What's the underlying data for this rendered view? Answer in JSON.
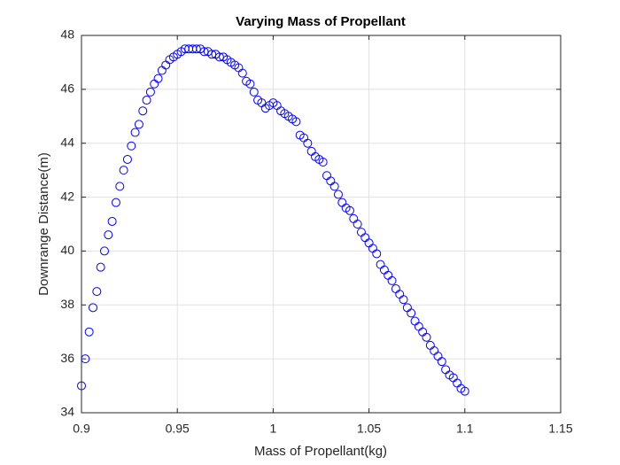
{
  "chart_data": {
    "type": "scatter",
    "title": "Varying Mass of Propellant",
    "xlabel": "Mass of Propellant(kg)",
    "ylabel": "Downrange Distance(m)",
    "color": "#0000ff",
    "grid": true,
    "xlim": [
      0.9,
      1.15
    ],
    "xticks": [
      0.9,
      0.95,
      1,
      1.05,
      1.1,
      1.15
    ],
    "ylim": [
      34,
      48
    ],
    "yticks": [
      34,
      36,
      38,
      40,
      42,
      44,
      46,
      48
    ],
    "x": [
      0.9,
      0.902,
      0.904,
      0.906,
      0.908,
      0.91,
      0.912,
      0.914,
      0.916,
      0.918,
      0.92,
      0.922,
      0.924,
      0.926,
      0.928,
      0.93,
      0.932,
      0.934,
      0.936,
      0.938,
      0.94,
      0.942,
      0.944,
      0.946,
      0.948,
      0.95,
      0.952,
      0.954,
      0.956,
      0.958,
      0.96,
      0.962,
      0.964,
      0.966,
      0.968,
      0.97,
      0.972,
      0.974,
      0.976,
      0.978,
      0.98,
      0.982,
      0.984,
      0.986,
      0.988,
      0.99,
      0.992,
      0.994,
      0.996,
      0.998,
      1.0,
      1.002,
      1.004,
      1.006,
      1.008,
      1.01,
      1.012,
      1.014,
      1.016,
      1.018,
      1.02,
      1.022,
      1.024,
      1.026,
      1.028,
      1.03,
      1.032,
      1.034,
      1.036,
      1.038,
      1.04,
      1.042,
      1.044,
      1.046,
      1.048,
      1.05,
      1.052,
      1.054,
      1.056,
      1.058,
      1.06,
      1.062,
      1.064,
      1.066,
      1.068,
      1.07,
      1.072,
      1.074,
      1.076,
      1.078,
      1.08,
      1.082,
      1.084,
      1.086,
      1.088,
      1.09,
      1.092,
      1.094,
      1.096,
      1.098,
      1.1
    ],
    "values": [
      35.0,
      36.0,
      37.0,
      37.9,
      38.5,
      39.4,
      40.0,
      40.6,
      41.1,
      41.8,
      42.4,
      43.0,
      43.4,
      43.9,
      44.4,
      44.7,
      45.2,
      45.6,
      45.9,
      46.2,
      46.4,
      46.7,
      46.9,
      47.1,
      47.2,
      47.3,
      47.4,
      47.5,
      47.5,
      47.5,
      47.5,
      47.5,
      47.4,
      47.4,
      47.3,
      47.3,
      47.2,
      47.2,
      47.1,
      47.0,
      46.9,
      46.8,
      46.6,
      46.3,
      46.2,
      45.9,
      45.6,
      45.5,
      45.3,
      45.4,
      45.5,
      45.4,
      45.2,
      45.1,
      45.0,
      44.9,
      44.8,
      44.3,
      44.2,
      44.0,
      43.7,
      43.5,
      43.4,
      43.3,
      42.8,
      42.6,
      42.4,
      42.1,
      41.8,
      41.6,
      41.5,
      41.2,
      41.0,
      40.7,
      40.5,
      40.3,
      40.1,
      39.9,
      39.5,
      39.3,
      39.1,
      38.9,
      38.6,
      38.4,
      38.2,
      37.9,
      37.7,
      37.4,
      37.2,
      37.0,
      36.8,
      36.5,
      36.3,
      36.1,
      35.9,
      35.6,
      35.4,
      35.3,
      35.1,
      34.9,
      34.8
    ]
  }
}
